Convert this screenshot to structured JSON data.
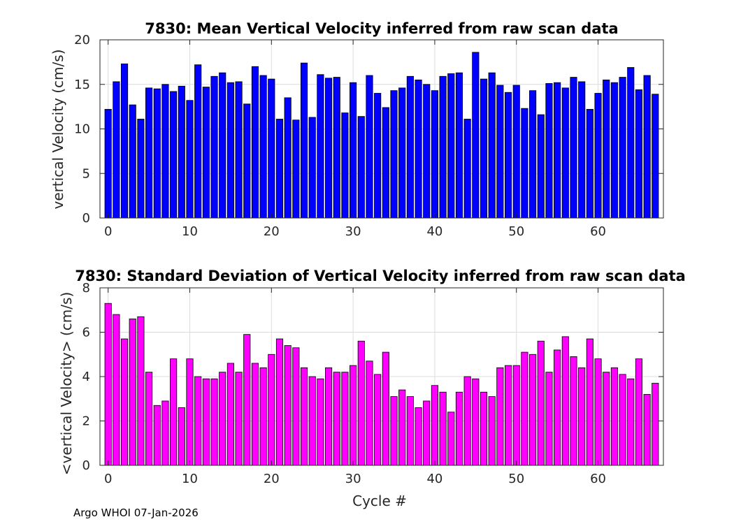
{
  "footer": "Argo WHOI 07-Jan-2026",
  "chart_data": [
    {
      "type": "bar",
      "title": "7830: Mean Vertical Velocity inferred from raw scan data",
      "xlabel": "",
      "ylabel": "vertical Velocity (cm/s)",
      "xlim": [
        -1,
        68
      ],
      "ylim": [
        0,
        20
      ],
      "xticks": [
        0,
        10,
        20,
        30,
        40,
        50,
        60
      ],
      "yticks": [
        0,
        5,
        10,
        15,
        20
      ],
      "grid": true,
      "color": "#0000ff",
      "x_start": 0,
      "values": [
        12.2,
        15.3,
        17.3,
        12.7,
        11.1,
        14.6,
        14.5,
        15.0,
        14.2,
        14.8,
        13.2,
        17.2,
        14.7,
        15.9,
        16.3,
        15.2,
        15.3,
        12.8,
        17.0,
        16.0,
        15.6,
        11.1,
        13.5,
        11.0,
        17.4,
        11.3,
        16.1,
        15.7,
        15.8,
        11.8,
        15.2,
        11.4,
        16.0,
        14.0,
        12.4,
        14.3,
        14.6,
        15.9,
        15.5,
        15.0,
        14.3,
        15.9,
        16.2,
        16.3,
        11.1,
        18.6,
        15.6,
        16.3,
        14.9,
        14.1,
        14.9,
        12.3,
        14.3,
        11.6,
        15.1,
        15.2,
        14.6,
        15.8,
        15.3,
        12.2,
        14.0,
        15.5,
        15.2,
        15.8,
        16.9,
        14.4,
        16.0,
        13.9
      ]
    },
    {
      "type": "bar",
      "title": "7830: Standard Deviation of Vertical Velocity inferred from raw scan data",
      "xlabel": "Cycle #",
      "ylabel": "<vertical Velocity> (cm/s)",
      "xlim": [
        -1,
        68
      ],
      "ylim": [
        0,
        8
      ],
      "xticks": [
        0,
        10,
        20,
        30,
        40,
        50,
        60
      ],
      "yticks": [
        0,
        2,
        4,
        6,
        8
      ],
      "grid": true,
      "color": "#ff00ff",
      "x_start": 0,
      "values": [
        7.3,
        6.8,
        5.7,
        6.6,
        6.7,
        4.2,
        2.7,
        2.9,
        4.8,
        2.6,
        4.8,
        4.0,
        3.9,
        3.9,
        4.2,
        4.6,
        4.2,
        5.9,
        4.6,
        4.4,
        5.0,
        5.7,
        5.4,
        5.3,
        4.4,
        4.0,
        3.9,
        4.4,
        4.2,
        4.2,
        4.5,
        5.6,
        4.7,
        4.1,
        5.1,
        3.1,
        3.4,
        3.1,
        2.6,
        2.9,
        3.6,
        3.3,
        2.4,
        3.3,
        4.0,
        3.9,
        3.3,
        3.1,
        4.4,
        4.5,
        4.5,
        5.1,
        5.0,
        5.6,
        4.2,
        5.2,
        5.8,
        4.9,
        4.4,
        5.7,
        4.8,
        4.2,
        4.4,
        4.1,
        3.9,
        4.8,
        3.2,
        3.7
      ]
    }
  ]
}
